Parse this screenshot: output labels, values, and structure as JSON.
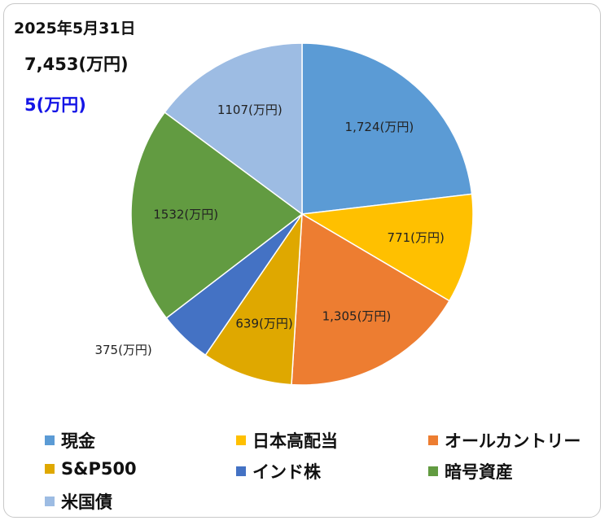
{
  "header": {
    "date": "2025年5月31日",
    "total": "7,453(万円)",
    "diff": "5(万円)",
    "diff_color": "#1414e6"
  },
  "chart_data": {
    "type": "pie",
    "title": "",
    "unit": "万円",
    "start_angle_deg": 0,
    "direction": "clockwise",
    "legend_position": "bottom",
    "slices": [
      {
        "name": "現金",
        "value": 1724,
        "label": "1,724(万円)",
        "color": "#5b9bd5"
      },
      {
        "name": "日本高配当",
        "value": 771,
        "label": "771(万円)",
        "color": "#ffc000"
      },
      {
        "name": "オールカントリー",
        "value": 1305,
        "label": "1,305(万円)",
        "color": "#ed7d31"
      },
      {
        "name": "S&P500",
        "value": 639,
        "label": "639(万円)",
        "color": "#dfa800"
      },
      {
        "name": "インド株",
        "value": 375,
        "label": "375(万円)",
        "color": "#4472c4"
      },
      {
        "name": "暗号資産",
        "value": 1532,
        "label": "1532(万円)",
        "color": "#629b41"
      },
      {
        "name": "米国債",
        "value": 1107,
        "label": "1107(万円)",
        "color": "#9dbce3"
      }
    ]
  }
}
